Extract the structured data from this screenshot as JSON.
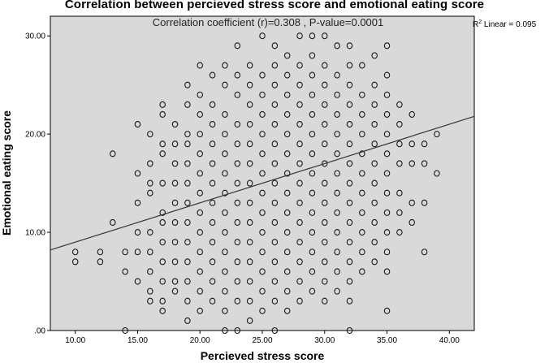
{
  "chart_data": {
    "type": "scatter",
    "title": "Correlation between percieved stress score and emotional eating score",
    "xlabel": "Percieved stress score",
    "ylabel": "Emotional eating score",
    "xlim": [
      8.0,
      42.0
    ],
    "ylim": [
      0.0,
      32.0
    ],
    "x_ticks": [
      10,
      15,
      20,
      25,
      30,
      35,
      40
    ],
    "x_tick_labels": [
      "10.00",
      "15.00",
      "20.00",
      "25.00",
      "30.00",
      "35.00",
      "40.00"
    ],
    "y_ticks": [
      0,
      10,
      20,
      30
    ],
    "y_tick_labels": [
      ".00",
      "10.00",
      "20.00",
      "30.00"
    ],
    "annotation": "Correlation coefficient (r)=0.308 , P-value=0.0001",
    "r2_prefix": "R",
    "r2_sup": "2",
    "r2_suffix": " Linear = 0.095",
    "fit_line": {
      "x": [
        8.0,
        42.0
      ],
      "y": [
        8.2,
        21.8
      ]
    },
    "grid": false,
    "background": "#d9d9d9",
    "marker_color": "#1a1a1a",
    "points": [
      [
        10,
        8
      ],
      [
        10,
        7
      ],
      [
        12,
        8
      ],
      [
        12,
        7
      ],
      [
        13,
        18
      ],
      [
        13,
        11
      ],
      [
        14,
        8
      ],
      [
        14,
        6
      ],
      [
        14,
        0
      ],
      [
        15,
        21
      ],
      [
        15,
        16
      ],
      [
        15,
        13
      ],
      [
        15,
        10
      ],
      [
        15,
        8
      ],
      [
        15,
        5
      ],
      [
        16,
        20
      ],
      [
        16,
        17
      ],
      [
        16,
        15
      ],
      [
        16,
        14
      ],
      [
        16,
        10
      ],
      [
        16,
        8
      ],
      [
        16,
        6
      ],
      [
        16,
        4
      ],
      [
        16,
        3
      ],
      [
        17,
        23
      ],
      [
        17,
        22
      ],
      [
        17,
        19
      ],
      [
        17,
        18
      ],
      [
        17,
        15
      ],
      [
        17,
        12
      ],
      [
        17,
        11
      ],
      [
        17,
        9
      ],
      [
        17,
        7
      ],
      [
        17,
        5
      ],
      [
        17,
        3
      ],
      [
        17,
        2
      ],
      [
        18,
        21
      ],
      [
        18,
        19
      ],
      [
        18,
        17
      ],
      [
        18,
        15
      ],
      [
        18,
        13
      ],
      [
        18,
        11
      ],
      [
        18,
        9
      ],
      [
        18,
        7
      ],
      [
        18,
        5
      ],
      [
        18,
        4
      ],
      [
        19,
        25
      ],
      [
        19,
        23
      ],
      [
        19,
        20
      ],
      [
        19,
        19
      ],
      [
        19,
        17
      ],
      [
        19,
        15
      ],
      [
        19,
        13
      ],
      [
        19,
        11
      ],
      [
        19,
        9
      ],
      [
        19,
        7
      ],
      [
        19,
        5
      ],
      [
        19,
        3
      ],
      [
        19,
        1
      ],
      [
        20,
        27
      ],
      [
        20,
        24
      ],
      [
        20,
        22
      ],
      [
        20,
        20
      ],
      [
        20,
        18
      ],
      [
        20,
        16
      ],
      [
        20,
        14
      ],
      [
        20,
        12
      ],
      [
        20,
        10
      ],
      [
        20,
        8
      ],
      [
        20,
        6
      ],
      [
        20,
        4
      ],
      [
        20,
        2
      ],
      [
        21,
        26
      ],
      [
        21,
        23
      ],
      [
        21,
        21
      ],
      [
        21,
        19
      ],
      [
        21,
        17
      ],
      [
        21,
        15
      ],
      [
        21,
        13
      ],
      [
        21,
        11
      ],
      [
        21,
        9
      ],
      [
        21,
        7
      ],
      [
        21,
        5
      ],
      [
        21,
        3
      ],
      [
        22,
        27
      ],
      [
        22,
        25
      ],
      [
        22,
        22
      ],
      [
        22,
        20
      ],
      [
        22,
        18
      ],
      [
        22,
        16
      ],
      [
        22,
        14
      ],
      [
        22,
        12
      ],
      [
        22,
        10
      ],
      [
        22,
        8
      ],
      [
        22,
        6
      ],
      [
        22,
        4
      ],
      [
        22,
        2
      ],
      [
        22,
        0
      ],
      [
        23,
        29
      ],
      [
        23,
        26
      ],
      [
        23,
        24
      ],
      [
        23,
        21
      ],
      [
        23,
        19
      ],
      [
        23,
        17
      ],
      [
        23,
        15
      ],
      [
        23,
        13
      ],
      [
        23,
        11
      ],
      [
        23,
        9
      ],
      [
        23,
        7
      ],
      [
        23,
        5
      ],
      [
        23,
        3
      ],
      [
        23,
        0
      ],
      [
        24,
        27
      ],
      [
        24,
        25
      ],
      [
        24,
        23
      ],
      [
        24,
        21
      ],
      [
        24,
        19
      ],
      [
        24,
        17
      ],
      [
        24,
        15
      ],
      [
        24,
        13
      ],
      [
        24,
        11
      ],
      [
        24,
        9
      ],
      [
        24,
        7
      ],
      [
        24,
        5
      ],
      [
        24,
        3
      ],
      [
        24,
        1
      ],
      [
        25,
        30
      ],
      [
        25,
        26
      ],
      [
        25,
        24
      ],
      [
        25,
        22
      ],
      [
        25,
        20
      ],
      [
        25,
        18
      ],
      [
        25,
        16
      ],
      [
        25,
        14
      ],
      [
        25,
        12
      ],
      [
        25,
        10
      ],
      [
        25,
        8
      ],
      [
        25,
        6
      ],
      [
        25,
        4
      ],
      [
        25,
        2
      ],
      [
        26,
        29
      ],
      [
        26,
        27
      ],
      [
        26,
        25
      ],
      [
        26,
        23
      ],
      [
        26,
        21
      ],
      [
        26,
        19
      ],
      [
        26,
        17
      ],
      [
        26,
        15
      ],
      [
        26,
        13
      ],
      [
        26,
        11
      ],
      [
        26,
        9
      ],
      [
        26,
        7
      ],
      [
        26,
        5
      ],
      [
        26,
        3
      ],
      [
        26,
        0
      ],
      [
        27,
        28
      ],
      [
        27,
        26
      ],
      [
        27,
        24
      ],
      [
        27,
        22
      ],
      [
        27,
        20
      ],
      [
        27,
        18
      ],
      [
        27,
        16
      ],
      [
        27,
        14
      ],
      [
        27,
        12
      ],
      [
        27,
        10
      ],
      [
        27,
        8
      ],
      [
        27,
        6
      ],
      [
        27,
        4
      ],
      [
        27,
        2
      ],
      [
        28,
        30
      ],
      [
        28,
        27
      ],
      [
        28,
        25
      ],
      [
        28,
        23
      ],
      [
        28,
        21
      ],
      [
        28,
        19
      ],
      [
        28,
        17
      ],
      [
        28,
        15
      ],
      [
        28,
        13
      ],
      [
        28,
        11
      ],
      [
        28,
        9
      ],
      [
        28,
        7
      ],
      [
        28,
        5
      ],
      [
        28,
        3
      ],
      [
        29,
        30
      ],
      [
        29,
        28
      ],
      [
        29,
        26
      ],
      [
        29,
        24
      ],
      [
        29,
        22
      ],
      [
        29,
        20
      ],
      [
        29,
        18
      ],
      [
        29,
        16
      ],
      [
        29,
        14
      ],
      [
        29,
        12
      ],
      [
        29,
        10
      ],
      [
        29,
        8
      ],
      [
        29,
        6
      ],
      [
        29,
        4
      ],
      [
        30,
        30
      ],
      [
        30,
        27
      ],
      [
        30,
        25
      ],
      [
        30,
        23
      ],
      [
        30,
        21
      ],
      [
        30,
        19
      ],
      [
        30,
        17
      ],
      [
        30,
        15
      ],
      [
        30,
        13
      ],
      [
        30,
        11
      ],
      [
        30,
        9
      ],
      [
        30,
        7
      ],
      [
        30,
        5
      ],
      [
        30,
        3
      ],
      [
        31,
        29
      ],
      [
        31,
        26
      ],
      [
        31,
        24
      ],
      [
        31,
        22
      ],
      [
        31,
        20
      ],
      [
        31,
        18
      ],
      [
        31,
        16
      ],
      [
        31,
        14
      ],
      [
        31,
        12
      ],
      [
        31,
        10
      ],
      [
        31,
        8
      ],
      [
        31,
        6
      ],
      [
        31,
        4
      ],
      [
        32,
        29
      ],
      [
        32,
        27
      ],
      [
        32,
        25
      ],
      [
        32,
        23
      ],
      [
        32,
        21
      ],
      [
        32,
        19
      ],
      [
        32,
        17
      ],
      [
        32,
        15
      ],
      [
        32,
        13
      ],
      [
        32,
        11
      ],
      [
        32,
        9
      ],
      [
        32,
        7
      ],
      [
        32,
        5
      ],
      [
        32,
        3
      ],
      [
        32,
        0
      ],
      [
        33,
        27
      ],
      [
        33,
        24
      ],
      [
        33,
        22
      ],
      [
        33,
        20
      ],
      [
        33,
        18
      ],
      [
        33,
        16
      ],
      [
        33,
        14
      ],
      [
        33,
        12
      ],
      [
        33,
        10
      ],
      [
        33,
        8
      ],
      [
        33,
        6
      ],
      [
        34,
        28
      ],
      [
        34,
        25
      ],
      [
        34,
        23
      ],
      [
        34,
        21
      ],
      [
        34,
        19
      ],
      [
        34,
        17
      ],
      [
        34,
        15
      ],
      [
        34,
        13
      ],
      [
        34,
        11
      ],
      [
        34,
        9
      ],
      [
        34,
        7
      ],
      [
        35,
        29
      ],
      [
        35,
        26
      ],
      [
        35,
        24
      ],
      [
        35,
        22
      ],
      [
        35,
        20
      ],
      [
        35,
        18
      ],
      [
        35,
        16
      ],
      [
        35,
        14
      ],
      [
        35,
        12
      ],
      [
        35,
        10
      ],
      [
        35,
        8
      ],
      [
        35,
        6
      ],
      [
        35,
        2
      ],
      [
        36,
        23
      ],
      [
        36,
        21
      ],
      [
        36,
        19
      ],
      [
        36,
        17
      ],
      [
        36,
        14
      ],
      [
        36,
        12
      ],
      [
        36,
        10
      ],
      [
        37,
        22
      ],
      [
        37,
        19
      ],
      [
        37,
        17
      ],
      [
        37,
        13
      ],
      [
        37,
        11
      ],
      [
        38,
        19
      ],
      [
        38,
        17
      ],
      [
        38,
        13
      ],
      [
        38,
        8
      ],
      [
        39,
        20
      ],
      [
        39,
        16
      ]
    ]
  }
}
